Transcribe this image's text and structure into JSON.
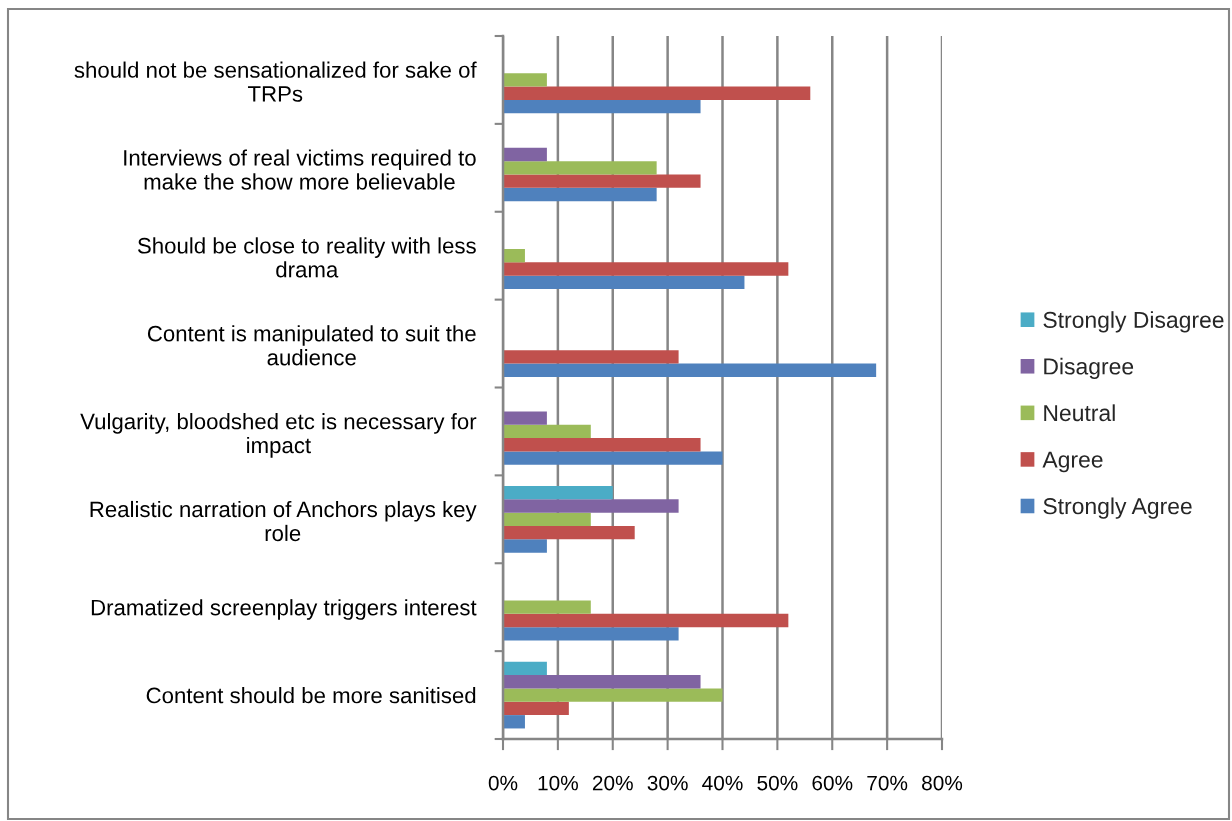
{
  "chart_data": {
    "type": "bar",
    "orientation": "horizontal",
    "categories": [
      "should not be sensationalized for sake of\nTRPs",
      "Interviews of real victims required to\nmake the show more believable",
      "Should be close to reality with less\ndrama",
      "Content is manipulated to suit the\naudience",
      "Vulgarity, bloodshed etc is necessary for\nimpact",
      "Realistic narration of Anchors plays key\nrole",
      "Dramatized screenplay triggers interest",
      "Content should be more sanitised"
    ],
    "series": [
      {
        "name": "Strongly Agree",
        "color": "#4f81bd",
        "values": [
          36,
          28,
          44,
          68,
          40,
          8,
          32,
          4
        ]
      },
      {
        "name": "Agree",
        "color": "#c0504d",
        "values": [
          56,
          36,
          52,
          32,
          36,
          24,
          52,
          12
        ]
      },
      {
        "name": "Neutral",
        "color": "#9bbb59",
        "values": [
          8,
          28,
          4,
          0,
          16,
          16,
          16,
          40
        ]
      },
      {
        "name": "Disagree",
        "color": "#8064a2",
        "values": [
          0,
          8,
          0,
          0,
          8,
          32,
          0,
          36
        ]
      },
      {
        "name": "Strongly Disagree",
        "color": "#4bacc6",
        "values": [
          0,
          0,
          0,
          0,
          0,
          20,
          0,
          8
        ]
      }
    ],
    "xlim": [
      0,
      80
    ],
    "xticks": [
      {
        "value": 0,
        "label": "0%"
      },
      {
        "value": 10,
        "label": "10%"
      },
      {
        "value": 20,
        "label": "20%"
      },
      {
        "value": 30,
        "label": "30%"
      },
      {
        "value": 40,
        "label": "40%"
      },
      {
        "value": 50,
        "label": "50%"
      },
      {
        "value": 60,
        "label": "60%"
      },
      {
        "value": 70,
        "label": "70%"
      },
      {
        "value": 80,
        "label": "80%"
      }
    ],
    "grid": "x",
    "legend": "right"
  }
}
